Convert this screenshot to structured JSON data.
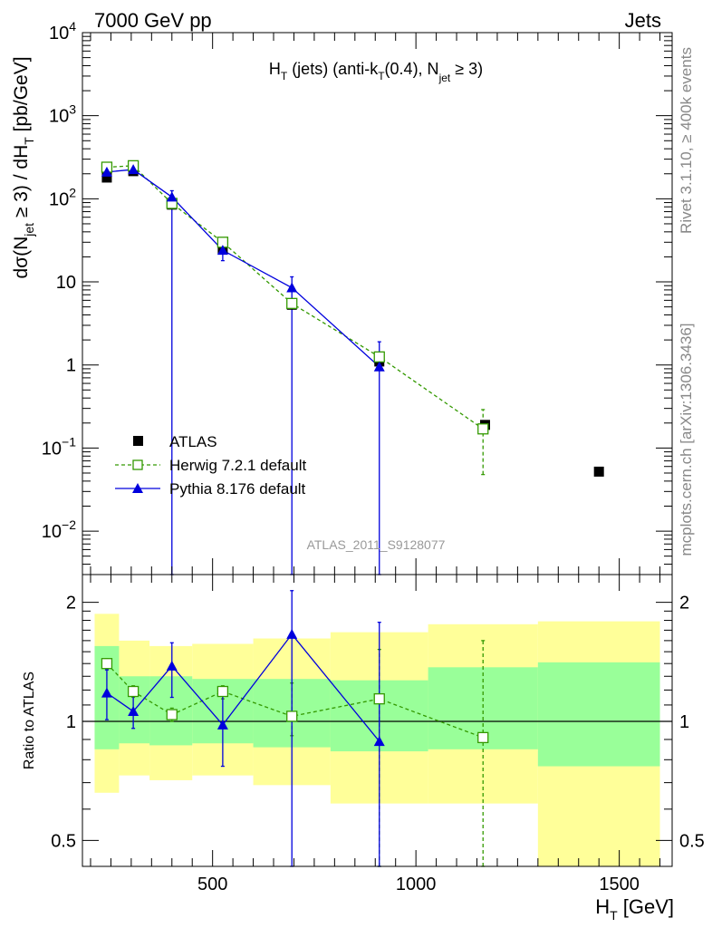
{
  "header": {
    "left": "7000 GeV pp",
    "right": "Jets"
  },
  "side_labels": {
    "rivet": "Rivet 3.1.10, ≥ 400k events",
    "mcplots": "mcplots.cern.ch [arXiv:1306.3436]"
  },
  "chart_data": {
    "type": "line",
    "title": "H_T (jets) (anti-k_T(0.4), N_jet ≥ 3)",
    "analysis_id": "ATLAS_2011_S9128077",
    "xlabel": "H_T [GeV]",
    "ylabel": "dσ(N_jet ≥ 3) / dH_T [pb/GeV]",
    "xlim": [
      180,
      1630
    ],
    "ylim": [
      0.003,
      10000
    ],
    "yscale": "log",
    "x_ticks": [
      500,
      1000,
      1500
    ],
    "y_ticks": [
      "10^-2",
      "10^-1",
      "1",
      "10",
      "10^2",
      "10^3",
      "10^4"
    ],
    "legend_position": "bottom-left",
    "series": [
      {
        "name": "ATLAS",
        "style": "black filled squares",
        "color": "#000000",
        "x": [
          240,
          305,
          400,
          525,
          695,
          910,
          1170,
          1450
        ],
        "y": [
          180,
          215,
          85,
          25,
          5.3,
          1.1,
          0.19,
          0.052
        ]
      },
      {
        "name": "Herwig 7.2.1 default",
        "style": "green dashed line, open squares",
        "color": "#339900",
        "x": [
          240,
          305,
          400,
          525,
          695,
          910,
          1165
        ],
        "y": [
          240,
          250,
          88,
          30,
          5.5,
          1.25,
          0.17
        ],
        "err_low": [
          0,
          0,
          0,
          0,
          0,
          0,
          0.048
        ],
        "err_high": [
          0,
          0,
          0,
          0,
          0,
          0,
          0.29
        ]
      },
      {
        "name": "Pythia 8.176 default",
        "style": "blue solid line, filled triangles",
        "color": "#0000dd",
        "x": [
          240,
          305,
          400,
          525,
          695,
          910
        ],
        "y": [
          210,
          225,
          105,
          24,
          8.5,
          0.95
        ],
        "err_low": [
          0,
          0,
          0,
          18,
          0,
          0.003
        ],
        "err_high": [
          0,
          0,
          125,
          32,
          11.5,
          1.9
        ]
      }
    ],
    "ratio_panel": {
      "ylabel": "Ratio to ATLAS",
      "ylim": [
        0.43,
        2.35
      ],
      "yscale": "log",
      "y_ticks": [
        "0.5",
        "1",
        "2"
      ],
      "reference": 1,
      "bin_edges": [
        210,
        270,
        345,
        450,
        600,
        790,
        1030,
        1300,
        1600
      ],
      "band_inner": [
        [
          0.85,
          1.55
        ],
        [
          0.88,
          1.3
        ],
        [
          0.87,
          1.3
        ],
        [
          0.88,
          1.28
        ],
        [
          0.86,
          1.28
        ],
        [
          0.84,
          1.27
        ],
        [
          0.85,
          1.37
        ],
        [
          0.77,
          1.41
        ]
      ],
      "band_outer": [
        [
          0.66,
          1.87
        ],
        [
          0.73,
          1.6
        ],
        [
          0.71,
          1.55
        ],
        [
          0.73,
          1.57
        ],
        [
          0.69,
          1.62
        ],
        [
          0.62,
          1.68
        ],
        [
          0.62,
          1.76
        ],
        [
          0.42,
          1.79
        ]
      ],
      "herwig": {
        "x": [
          240,
          305,
          400,
          525,
          695,
          910,
          1165
        ],
        "y": [
          1.4,
          1.19,
          1.04,
          1.19,
          1.03,
          1.14,
          0.91
        ],
        "err_low": [
          1.35,
          1.15,
          1.0,
          1.14,
          0.92,
          0.0,
          0.43
        ],
        "err_high": [
          1.44,
          1.23,
          1.08,
          1.23,
          1.25,
          1.52,
          1.6
        ]
      },
      "pythia": {
        "x": [
          240,
          305,
          400,
          525,
          695,
          910
        ],
        "y": [
          1.18,
          1.06,
          1.38,
          0.98,
          1.66,
          0.89
        ],
        "err_low": [
          1.01,
          0.96,
          1.15,
          0.77,
          0.0,
          0.0
        ],
        "err_high": [
          1.35,
          1.18,
          1.58,
          1.2,
          2.14,
          1.78
        ]
      }
    }
  }
}
